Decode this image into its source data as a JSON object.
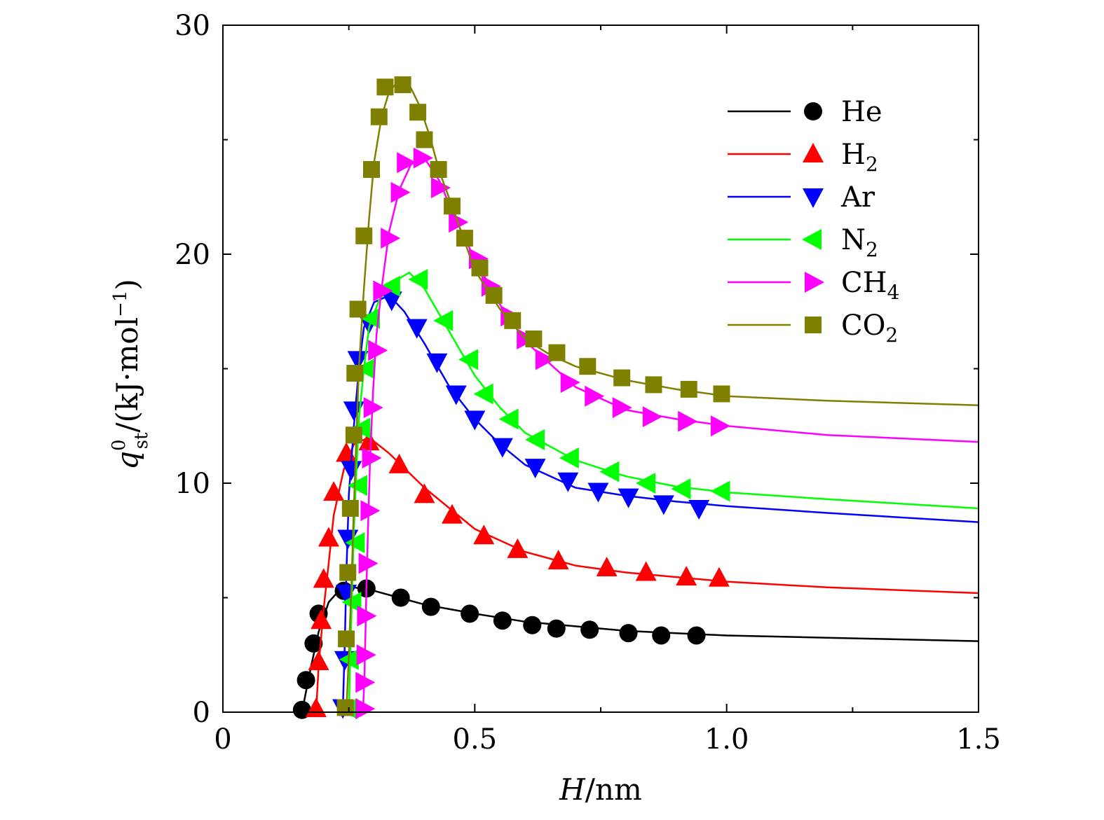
{
  "chart_data": {
    "type": "line",
    "title": "",
    "xlabel": {
      "italic": "H",
      "rest": "/nm"
    },
    "ylabel": {
      "symbol": "q",
      "sup": "0",
      "sub": "st",
      "rest": "/(kJ·mol",
      "unit_sup": "−1",
      "close": ")"
    },
    "xlim": [
      0,
      1.5
    ],
    "ylim": [
      0,
      30
    ],
    "xticks": [
      {
        "value": 0,
        "label": "0"
      },
      {
        "value": 0.5,
        "label": "0.5"
      },
      {
        "value": 1.0,
        "label": "1.0"
      },
      {
        "value": 1.5,
        "label": "1.5"
      }
    ],
    "yticks": [
      {
        "value": 0,
        "label": "0"
      },
      {
        "value": 10,
        "label": "10"
      },
      {
        "value": 20,
        "label": "20"
      },
      {
        "value": 30,
        "label": "30"
      }
    ],
    "legend_position": "top-right",
    "series": [
      {
        "name": "He",
        "label_main": "He",
        "label_sub": "",
        "color": "#000000",
        "marker": "circle",
        "curve": [
          [
            0.157,
            0
          ],
          [
            0.165,
            0.9
          ],
          [
            0.175,
            2.0
          ],
          [
            0.19,
            3.5
          ],
          [
            0.21,
            4.8
          ],
          [
            0.23,
            5.3
          ],
          [
            0.26,
            5.45
          ],
          [
            0.3,
            5.3
          ],
          [
            0.35,
            5.0
          ],
          [
            0.4,
            4.7
          ],
          [
            0.5,
            4.3
          ],
          [
            0.6,
            3.95
          ],
          [
            0.7,
            3.75
          ],
          [
            0.8,
            3.55
          ],
          [
            0.9,
            3.45
          ],
          [
            1.0,
            3.35
          ],
          [
            1.2,
            3.25
          ],
          [
            1.5,
            3.1
          ]
        ],
        "points": [
          [
            0.157,
            0.1
          ],
          [
            0.165,
            1.4
          ],
          [
            0.18,
            3.0
          ],
          [
            0.19,
            4.3
          ],
          [
            0.24,
            5.3
          ],
          [
            0.285,
            5.4
          ],
          [
            0.353,
            5.0
          ],
          [
            0.413,
            4.6
          ],
          [
            0.49,
            4.3
          ],
          [
            0.555,
            4.0
          ],
          [
            0.614,
            3.8
          ],
          [
            0.662,
            3.65
          ],
          [
            0.728,
            3.6
          ],
          [
            0.805,
            3.45
          ],
          [
            0.87,
            3.35
          ],
          [
            0.94,
            3.35
          ]
        ]
      },
      {
        "name": "H2",
        "label_main": "H",
        "label_sub": "2",
        "color": "#ff0000",
        "marker": "triangle-up",
        "curve": [
          [
            0.185,
            0
          ],
          [
            0.19,
            2.0
          ],
          [
            0.2,
            4.5
          ],
          [
            0.21,
            6.5
          ],
          [
            0.22,
            8.6
          ],
          [
            0.24,
            10.6
          ],
          [
            0.26,
            11.7
          ],
          [
            0.29,
            12.0
          ],
          [
            0.33,
            11.3
          ],
          [
            0.4,
            9.8
          ],
          [
            0.5,
            8.0
          ],
          [
            0.6,
            7.0
          ],
          [
            0.7,
            6.4
          ],
          [
            0.8,
            6.1
          ],
          [
            0.9,
            5.9
          ],
          [
            1.0,
            5.7
          ],
          [
            1.2,
            5.45
          ],
          [
            1.5,
            5.2
          ]
        ],
        "points": [
          [
            0.185,
            0.15
          ],
          [
            0.19,
            2.2
          ],
          [
            0.195,
            4.0
          ],
          [
            0.2,
            5.8
          ],
          [
            0.21,
            7.6
          ],
          [
            0.22,
            9.6
          ],
          [
            0.245,
            11.3
          ],
          [
            0.29,
            11.8
          ],
          [
            0.35,
            10.8
          ],
          [
            0.4,
            9.5
          ],
          [
            0.455,
            8.6
          ],
          [
            0.518,
            7.7
          ],
          [
            0.585,
            7.1
          ],
          [
            0.666,
            6.6
          ],
          [
            0.762,
            6.3
          ],
          [
            0.84,
            6.1
          ],
          [
            0.92,
            5.9
          ],
          [
            0.985,
            5.85
          ]
        ]
      },
      {
        "name": "Ar",
        "label_main": "Ar",
        "label_sub": "",
        "color": "#0000ff",
        "marker": "triangle-down",
        "curve": [
          [
            0.238,
            0
          ],
          [
            0.242,
            3.0
          ],
          [
            0.245,
            6.0
          ],
          [
            0.25,
            9.5
          ],
          [
            0.26,
            12.5
          ],
          [
            0.27,
            15.0
          ],
          [
            0.28,
            16.8
          ],
          [
            0.3,
            17.9
          ],
          [
            0.33,
            18.2
          ],
          [
            0.36,
            17.5
          ],
          [
            0.4,
            16.1
          ],
          [
            0.45,
            14.2
          ],
          [
            0.5,
            12.8
          ],
          [
            0.55,
            11.7
          ],
          [
            0.6,
            10.8
          ],
          [
            0.7,
            9.8
          ],
          [
            0.8,
            9.45
          ],
          [
            0.9,
            9.2
          ],
          [
            1.0,
            9.0
          ],
          [
            1.2,
            8.7
          ],
          [
            1.5,
            8.3
          ]
        ],
        "points": [
          [
            0.238,
            0.2
          ],
          [
            0.242,
            2.3
          ],
          [
            0.245,
            5.2
          ],
          [
            0.248,
            7.6
          ],
          [
            0.255,
            10.6
          ],
          [
            0.26,
            13.2
          ],
          [
            0.268,
            15.4
          ],
          [
            0.29,
            17.0
          ],
          [
            0.335,
            18.0
          ],
          [
            0.385,
            16.8
          ],
          [
            0.425,
            15.3
          ],
          [
            0.463,
            13.9
          ],
          [
            0.5,
            12.8
          ],
          [
            0.555,
            11.6
          ],
          [
            0.62,
            10.7
          ],
          [
            0.685,
            10.1
          ],
          [
            0.745,
            9.65
          ],
          [
            0.805,
            9.4
          ],
          [
            0.875,
            9.1
          ],
          [
            0.945,
            8.9
          ]
        ]
      },
      {
        "name": "N2",
        "label_main": "N",
        "label_sub": "2",
        "color": "#00ff00",
        "marker": "triangle-left",
        "curve": [
          [
            0.25,
            0
          ],
          [
            0.253,
            2.5
          ],
          [
            0.256,
            5.0
          ],
          [
            0.26,
            8.0
          ],
          [
            0.265,
            10.5
          ],
          [
            0.27,
            12.8
          ],
          [
            0.28,
            15.0
          ],
          [
            0.29,
            16.8
          ],
          [
            0.31,
            18.0
          ],
          [
            0.34,
            18.8
          ],
          [
            0.37,
            19.2
          ],
          [
            0.4,
            18.5
          ],
          [
            0.45,
            16.6
          ],
          [
            0.5,
            14.7
          ],
          [
            0.55,
            13.3
          ],
          [
            0.6,
            12.2
          ],
          [
            0.7,
            11.0
          ],
          [
            0.8,
            10.3
          ],
          [
            0.9,
            9.85
          ],
          [
            1.0,
            9.6
          ],
          [
            1.2,
            9.3
          ],
          [
            1.5,
            8.9
          ]
        ],
        "points": [
          [
            0.25,
            0.15
          ],
          [
            0.253,
            2.3
          ],
          [
            0.258,
            4.8
          ],
          [
            0.265,
            7.4
          ],
          [
            0.27,
            9.9
          ],
          [
            0.276,
            12.4
          ],
          [
            0.285,
            15.0
          ],
          [
            0.295,
            17.2
          ],
          [
            0.335,
            18.6
          ],
          [
            0.39,
            18.9
          ],
          [
            0.44,
            17.1
          ],
          [
            0.49,
            15.4
          ],
          [
            0.52,
            13.9
          ],
          [
            0.57,
            12.8
          ],
          [
            0.622,
            11.9
          ],
          [
            0.69,
            11.1
          ],
          [
            0.77,
            10.5
          ],
          [
            0.842,
            10.0
          ],
          [
            0.912,
            9.75
          ],
          [
            0.99,
            9.65
          ]
        ]
      },
      {
        "name": "CH4",
        "label_main": "CH",
        "label_sub": "4",
        "color": "#ff00ff",
        "marker": "triangle-right",
        "curve": [
          [
            0.278,
            0
          ],
          [
            0.281,
            1.5
          ],
          [
            0.283,
            3.5
          ],
          [
            0.285,
            5.5
          ],
          [
            0.288,
            8.0
          ],
          [
            0.292,
            11.0
          ],
          [
            0.298,
            14.0
          ],
          [
            0.305,
            16.5
          ],
          [
            0.315,
            18.5
          ],
          [
            0.33,
            21.0
          ],
          [
            0.35,
            22.8
          ],
          [
            0.375,
            24.0
          ],
          [
            0.4,
            24.2
          ],
          [
            0.43,
            23.2
          ],
          [
            0.46,
            21.6
          ],
          [
            0.5,
            19.8
          ],
          [
            0.55,
            17.8
          ],
          [
            0.6,
            16.2
          ],
          [
            0.7,
            14.2
          ],
          [
            0.8,
            13.2
          ],
          [
            0.9,
            12.8
          ],
          [
            1.0,
            12.5
          ],
          [
            1.2,
            12.1
          ],
          [
            1.5,
            11.8
          ]
        ],
        "points": [
          [
            0.28,
            0.15
          ],
          [
            0.28,
            1.3
          ],
          [
            0.282,
            2.5
          ],
          [
            0.283,
            4.2
          ],
          [
            0.286,
            6.5
          ],
          [
            0.29,
            8.8
          ],
          [
            0.293,
            11.1
          ],
          [
            0.296,
            13.3
          ],
          [
            0.305,
            15.8
          ],
          [
            0.315,
            18.4
          ],
          [
            0.33,
            20.7
          ],
          [
            0.35,
            22.7
          ],
          [
            0.362,
            24.0
          ],
          [
            0.395,
            24.2
          ],
          [
            0.43,
            22.9
          ],
          [
            0.465,
            21.4
          ],
          [
            0.505,
            19.8
          ],
          [
            0.53,
            18.6
          ],
          [
            0.568,
            17.3
          ],
          [
            0.6,
            16.3
          ],
          [
            0.637,
            15.4
          ],
          [
            0.687,
            14.4
          ],
          [
            0.735,
            13.8
          ],
          [
            0.79,
            13.3
          ],
          [
            0.85,
            12.9
          ],
          [
            0.92,
            12.7
          ],
          [
            0.985,
            12.5
          ]
        ]
      },
      {
        "name": "CO2",
        "label_main": "CO",
        "label_sub": "2",
        "color": "#808000",
        "marker": "square",
        "curve": [
          [
            0.245,
            0
          ],
          [
            0.25,
            2.5
          ],
          [
            0.255,
            5.5
          ],
          [
            0.26,
            9.0
          ],
          [
            0.265,
            12.0
          ],
          [
            0.27,
            15.0
          ],
          [
            0.28,
            18.5
          ],
          [
            0.29,
            21.5
          ],
          [
            0.3,
            24.0
          ],
          [
            0.315,
            26.0
          ],
          [
            0.33,
            27.1
          ],
          [
            0.35,
            27.6
          ],
          [
            0.37,
            27.4
          ],
          [
            0.39,
            26.5
          ],
          [
            0.41,
            25.2
          ],
          [
            0.43,
            23.6
          ],
          [
            0.46,
            21.8
          ],
          [
            0.5,
            19.3
          ],
          [
            0.55,
            17.6
          ],
          [
            0.6,
            16.3
          ],
          [
            0.65,
            15.6
          ],
          [
            0.7,
            15.1
          ],
          [
            0.8,
            14.5
          ],
          [
            0.9,
            14.1
          ],
          [
            1.0,
            13.8
          ],
          [
            1.2,
            13.6
          ],
          [
            1.5,
            13.4
          ]
        ],
        "points": [
          [
            0.243,
            0.2
          ],
          [
            0.245,
            3.2
          ],
          [
            0.248,
            6.1
          ],
          [
            0.253,
            8.9
          ],
          [
            0.26,
            12.1
          ],
          [
            0.262,
            14.8
          ],
          [
            0.268,
            17.6
          ],
          [
            0.28,
            20.8
          ],
          [
            0.295,
            23.7
          ],
          [
            0.31,
            26.0
          ],
          [
            0.322,
            27.3
          ],
          [
            0.357,
            27.4
          ],
          [
            0.387,
            26.2
          ],
          [
            0.4,
            25.0
          ],
          [
            0.428,
            23.7
          ],
          [
            0.455,
            22.1
          ],
          [
            0.48,
            20.7
          ],
          [
            0.51,
            19.4
          ],
          [
            0.538,
            18.2
          ],
          [
            0.575,
            17.1
          ],
          [
            0.617,
            16.3
          ],
          [
            0.663,
            15.7
          ],
          [
            0.724,
            15.1
          ],
          [
            0.792,
            14.6
          ],
          [
            0.855,
            14.3
          ],
          [
            0.925,
            14.1
          ],
          [
            0.99,
            13.9
          ]
        ]
      }
    ]
  }
}
